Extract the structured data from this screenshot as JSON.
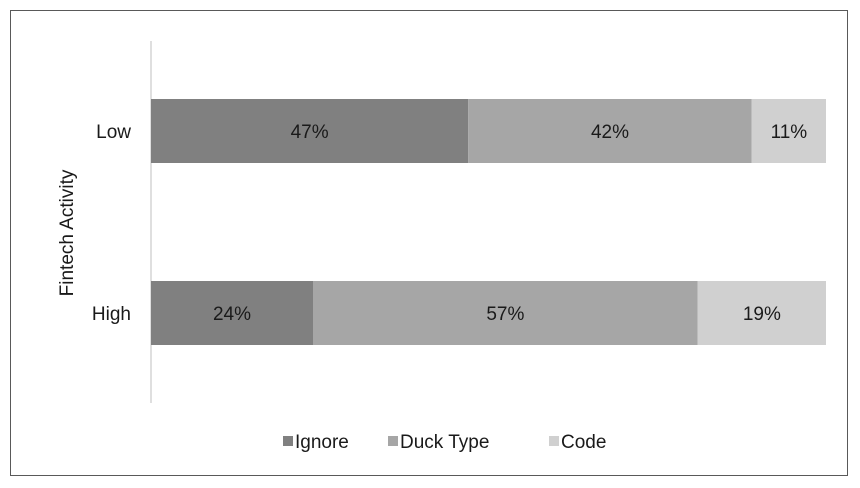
{
  "chart_data": {
    "type": "bar",
    "orientation": "horizontal",
    "stacked": "percent",
    "title": "",
    "ylabel": "Fintech Activity",
    "xlabel": "",
    "categories": [
      "Low",
      "High"
    ],
    "xlim": [
      0,
      100
    ],
    "grid": false,
    "legend_position": "bottom",
    "series": [
      {
        "name": "Ignore",
        "color": "#808080",
        "values": [
          47,
          24
        ],
        "labels": [
          "47%",
          "24%"
        ]
      },
      {
        "name": "Duck Type",
        "color": "#a6a6a6",
        "values": [
          42,
          57
        ],
        "labels": [
          "42%",
          "57%"
        ]
      },
      {
        "name": "Code",
        "color": "#d0d0d0",
        "values": [
          11,
          19
        ],
        "labels": [
          "11%",
          "19%"
        ]
      }
    ]
  }
}
